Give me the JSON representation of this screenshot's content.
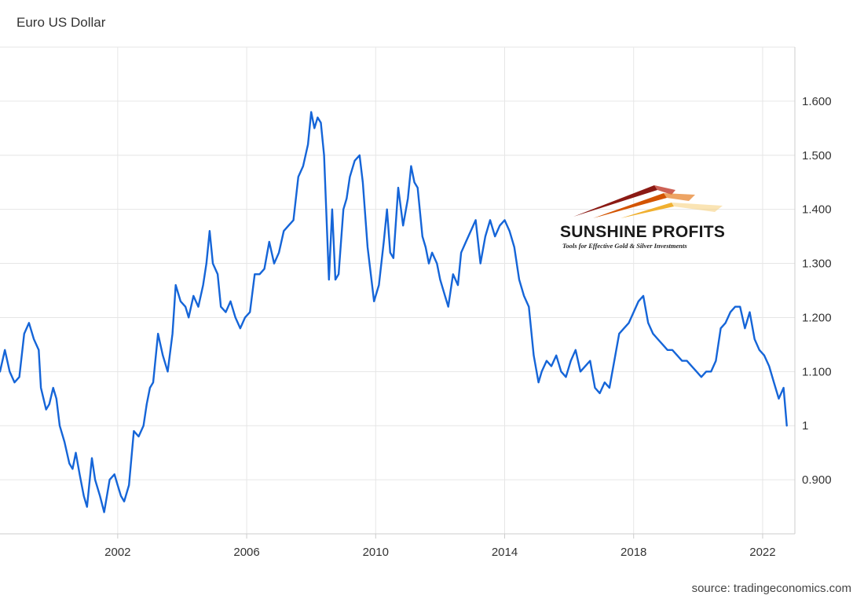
{
  "title": "Euro US Dollar",
  "source": "source: tradingeconomics.com",
  "logo": {
    "name": "SUNSHINE PROFITS",
    "tagline": "Tools for Effective Gold & Silver Investments"
  },
  "colors": {
    "line": "#1565d8",
    "grid": "#e6e6e6",
    "axis": "#cccccc"
  },
  "chart_data": {
    "type": "line",
    "title": "Euro US Dollar",
    "xlabel": "",
    "ylabel": "",
    "xlim": [
      1998.35,
      2023.0
    ],
    "ylim": [
      0.8,
      1.7
    ],
    "grid": true,
    "y_axis_position": "right",
    "x_ticks": [
      2002,
      2006,
      2010,
      2014,
      2018,
      2022
    ],
    "x_tick_labels": [
      "2002",
      "2006",
      "2010",
      "2014",
      "2018",
      "2022"
    ],
    "y_ticks": [
      0.9,
      1.0,
      1.1,
      1.2,
      1.3,
      1.4,
      1.5,
      1.6
    ],
    "y_tick_labels": [
      "0.900",
      "1",
      "1.100",
      "1.200",
      "1.300",
      "1.400",
      "1.500",
      "1.600"
    ],
    "series": [
      {
        "x": [
          1998.35,
          1998.5,
          1998.65,
          1998.8,
          1998.95,
          1999.1,
          1999.25,
          1999.4,
          1999.55,
          1999.62,
          1999.7,
          1999.78,
          1999.88,
          2000.0,
          2000.1,
          2000.2,
          2000.35,
          2000.5,
          2000.6,
          2000.7,
          2000.82,
          2000.95,
          2001.05,
          2001.2,
          2001.3,
          2001.45,
          2001.58,
          2001.75,
          2001.9,
          2002.0,
          2002.1,
          2002.2,
          2002.35,
          2002.5,
          2002.65,
          2002.8,
          2002.9,
          2003.0,
          2003.1,
          2003.25,
          2003.4,
          2003.55,
          2003.7,
          2003.8,
          2003.95,
          2004.1,
          2004.2,
          2004.35,
          2004.5,
          2004.65,
          2004.75,
          2004.85,
          2004.95,
          2005.1,
          2005.2,
          2005.35,
          2005.5,
          2005.65,
          2005.8,
          2005.95,
          2006.1,
          2006.25,
          2006.4,
          2006.55,
          2006.7,
          2006.85,
          2007.0,
          2007.15,
          2007.3,
          2007.45,
          2007.6,
          2007.75,
          2007.9,
          2008.0,
          2008.1,
          2008.2,
          2008.3,
          2008.4,
          2008.55,
          2008.65,
          2008.75,
          2008.85,
          2009.0,
          2009.1,
          2009.2,
          2009.35,
          2009.5,
          2009.6,
          2009.75,
          2009.85,
          2009.95,
          2010.1,
          2010.25,
          2010.35,
          2010.45,
          2010.55,
          2010.7,
          2010.85,
          2011.0,
          2011.1,
          2011.2,
          2011.3,
          2011.45,
          2011.55,
          2011.65,
          2011.75,
          2011.9,
          2012.0,
          2012.1,
          2012.25,
          2012.4,
          2012.55,
          2012.65,
          2012.8,
          2012.95,
          2013.1,
          2013.25,
          2013.4,
          2013.55,
          2013.7,
          2013.85,
          2014.0,
          2014.15,
          2014.3,
          2014.45,
          2014.6,
          2014.75,
          2014.9,
          2015.05,
          2015.15,
          2015.3,
          2015.45,
          2015.6,
          2015.75,
          2015.9,
          2016.05,
          2016.2,
          2016.35,
          2016.5,
          2016.65,
          2016.8,
          2016.95,
          2017.1,
          2017.25,
          2017.4,
          2017.55,
          2017.7,
          2017.85,
          2018.0,
          2018.15,
          2018.3,
          2018.45,
          2018.6,
          2018.75,
          2018.9,
          2019.05,
          2019.2,
          2019.35,
          2019.5,
          2019.65,
          2019.8,
          2019.95,
          2020.1,
          2020.25,
          2020.4,
          2020.55,
          2020.7,
          2020.85,
          2021.0,
          2021.15,
          2021.3,
          2021.45,
          2021.6,
          2021.75,
          2021.9,
          2022.05,
          2022.2,
          2022.35,
          2022.5,
          2022.65,
          2022.75
        ],
        "y": [
          1.1,
          1.14,
          1.1,
          1.08,
          1.09,
          1.17,
          1.19,
          1.16,
          1.14,
          1.07,
          1.05,
          1.03,
          1.04,
          1.07,
          1.05,
          1.0,
          0.97,
          0.93,
          0.92,
          0.95,
          0.91,
          0.87,
          0.85,
          0.94,
          0.9,
          0.87,
          0.84,
          0.9,
          0.91,
          0.89,
          0.87,
          0.86,
          0.89,
          0.99,
          0.98,
          1.0,
          1.04,
          1.07,
          1.08,
          1.17,
          1.13,
          1.1,
          1.17,
          1.26,
          1.23,
          1.22,
          1.2,
          1.24,
          1.22,
          1.26,
          1.3,
          1.36,
          1.3,
          1.28,
          1.22,
          1.21,
          1.23,
          1.2,
          1.18,
          1.2,
          1.21,
          1.28,
          1.28,
          1.29,
          1.34,
          1.3,
          1.32,
          1.36,
          1.37,
          1.38,
          1.46,
          1.48,
          1.52,
          1.58,
          1.55,
          1.57,
          1.56,
          1.5,
          1.27,
          1.4,
          1.27,
          1.28,
          1.4,
          1.42,
          1.46,
          1.49,
          1.5,
          1.45,
          1.33,
          1.28,
          1.23,
          1.26,
          1.34,
          1.4,
          1.32,
          1.31,
          1.44,
          1.37,
          1.42,
          1.48,
          1.45,
          1.44,
          1.35,
          1.33,
          1.3,
          1.32,
          1.3,
          1.27,
          1.25,
          1.22,
          1.28,
          1.26,
          1.32,
          1.34,
          1.36,
          1.38,
          1.3,
          1.35,
          1.38,
          1.35,
          1.37,
          1.38,
          1.36,
          1.33,
          1.27,
          1.24,
          1.22,
          1.13,
          1.08,
          1.1,
          1.12,
          1.11,
          1.13,
          1.1,
          1.09,
          1.12,
          1.14,
          1.1,
          1.11,
          1.12,
          1.07,
          1.06,
          1.08,
          1.07,
          1.12,
          1.17,
          1.18,
          1.19,
          1.21,
          1.23,
          1.24,
          1.19,
          1.17,
          1.16,
          1.15,
          1.14,
          1.14,
          1.13,
          1.12,
          1.12,
          1.11,
          1.1,
          1.09,
          1.1,
          1.1,
          1.12,
          1.18,
          1.19,
          1.21,
          1.22,
          1.22,
          1.18,
          1.21,
          1.16,
          1.14,
          1.13,
          1.11,
          1.08,
          1.05,
          1.07,
          1.0
        ]
      }
    ]
  }
}
